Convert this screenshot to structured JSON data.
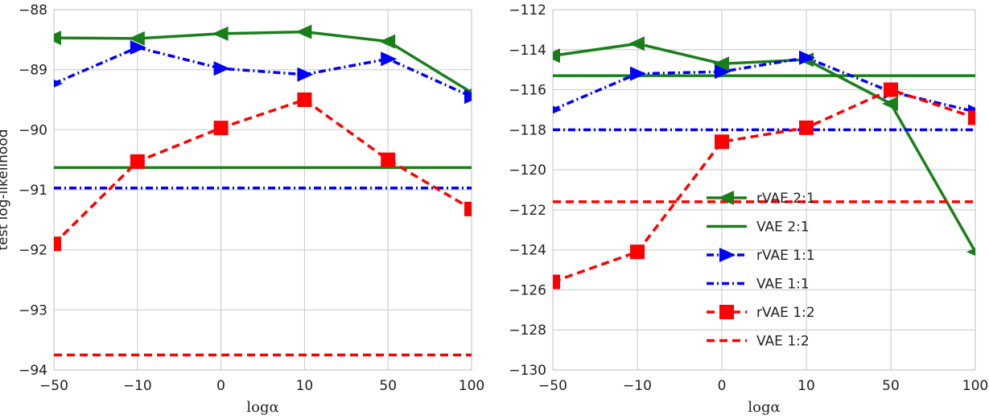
{
  "colors": {
    "green": "#1a7f1a",
    "blue": "#0000ff",
    "red": "#ff0000",
    "grid": "#d0d0d0"
  },
  "chart_data": [
    {
      "type": "line",
      "xlabel": "logα",
      "ylabel": "test log-likelihood",
      "categories": [
        "−50",
        "−10",
        "0",
        "10",
        "50",
        "100"
      ],
      "ylim": [
        -94,
        -88
      ],
      "yticks": [
        -88,
        -89,
        -90,
        -91,
        -92,
        -93,
        -94
      ],
      "grid": true,
      "series": [
        {
          "name": "rVAE 2:1",
          "color": "green",
          "style": "solid",
          "marker": "triangle-left",
          "values": [
            -88.47,
            -88.48,
            -88.4,
            -88.37,
            -88.53,
            -89.38
          ]
        },
        {
          "name": "VAE 2:1",
          "color": "green",
          "style": "solid",
          "marker": "none",
          "values": [
            -90.63,
            -90.63,
            -90.63,
            -90.63,
            -90.63,
            -90.63
          ]
        },
        {
          "name": "rVAE 1:1",
          "color": "blue",
          "style": "dashdot",
          "marker": "triangle-right",
          "values": [
            -89.23,
            -88.63,
            -88.98,
            -89.08,
            -88.82,
            -89.45
          ]
        },
        {
          "name": "VAE 1:1",
          "color": "blue",
          "style": "dashdot",
          "marker": "none",
          "values": [
            -90.97,
            -90.97,
            -90.97,
            -90.97,
            -90.97,
            -90.97
          ]
        },
        {
          "name": "rVAE 1:2",
          "color": "red",
          "style": "dashed",
          "marker": "square",
          "values": [
            -91.9,
            -90.53,
            -89.97,
            -89.5,
            -90.5,
            -91.32
          ]
        },
        {
          "name": "VAE 1:2",
          "color": "red",
          "style": "dashed",
          "marker": "none",
          "values": [
            -93.75,
            -93.75,
            -93.75,
            -93.75,
            -93.75,
            -93.75
          ]
        }
      ]
    },
    {
      "type": "line",
      "xlabel": "logα",
      "ylabel": "",
      "categories": [
        "−50",
        "−10",
        "0",
        "10",
        "50",
        "100"
      ],
      "ylim": [
        -130,
        -112
      ],
      "yticks": [
        -112,
        -114,
        -116,
        -118,
        -120,
        -122,
        -124,
        -126,
        -128,
        -130
      ],
      "grid": true,
      "legend": "center-right",
      "series": [
        {
          "name": "rVAE 2:1",
          "color": "green",
          "style": "solid",
          "marker": "triangle-left",
          "values": [
            -114.3,
            -113.7,
            -114.7,
            -114.5,
            -116.7,
            -124.1
          ]
        },
        {
          "name": "VAE 2:1",
          "color": "green",
          "style": "solid",
          "marker": "none",
          "values": [
            -115.3,
            -115.3,
            -115.3,
            -115.3,
            -115.3,
            -115.3
          ]
        },
        {
          "name": "rVAE 1:1",
          "color": "blue",
          "style": "dashdot",
          "marker": "triangle-right",
          "values": [
            -117.0,
            -115.2,
            -115.1,
            -114.4,
            -116.1,
            -117.1
          ]
        },
        {
          "name": "VAE 1:1",
          "color": "blue",
          "style": "dashdot",
          "marker": "none",
          "values": [
            -118.0,
            -118.0,
            -118.0,
            -118.0,
            -118.0,
            -118.0
          ]
        },
        {
          "name": "rVAE 1:2",
          "color": "red",
          "style": "dashed",
          "marker": "square",
          "values": [
            -125.6,
            -124.1,
            -118.6,
            -117.9,
            -116.0,
            -117.4
          ]
        },
        {
          "name": "VAE 1:2",
          "color": "red",
          "style": "dashed",
          "marker": "none",
          "values": [
            -121.6,
            -121.6,
            -121.6,
            -121.6,
            -121.6,
            -121.6
          ]
        }
      ]
    }
  ]
}
